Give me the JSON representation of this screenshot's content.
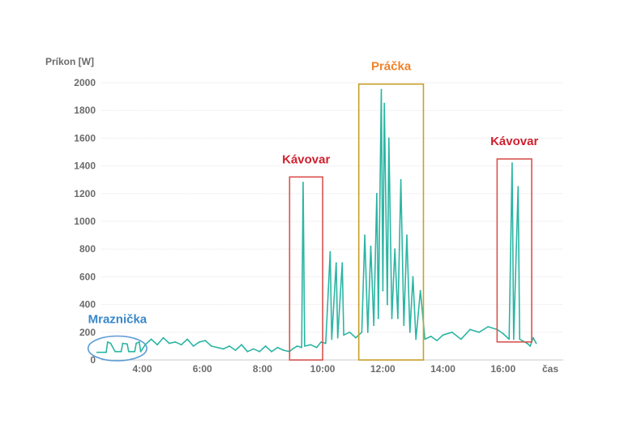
{
  "chart_data": {
    "type": "line",
    "title": "",
    "ylabel": "Príkon [W]",
    "xlabel": "čas",
    "ylim": [
      0,
      2000
    ],
    "xlim": [
      2.1,
      18.0
    ],
    "y_ticks": [
      0,
      200,
      400,
      600,
      800,
      1000,
      1200,
      1400,
      1600,
      1800,
      2000
    ],
    "x_ticks": [
      {
        "value": 4,
        "label": "4:00"
      },
      {
        "value": 6,
        "label": "6:00"
      },
      {
        "value": 8,
        "label": "8:00"
      },
      {
        "value": 10,
        "label": "10:00"
      },
      {
        "value": 12,
        "label": "12:00"
      },
      {
        "value": 14,
        "label": "14:00"
      },
      {
        "value": 16,
        "label": "16:00"
      }
    ],
    "grid": true,
    "series": [
      {
        "name": "Príkon",
        "color": "#2bb5a3",
        "points": [
          [
            2.5,
            55
          ],
          [
            2.8,
            55
          ],
          [
            2.85,
            130
          ],
          [
            2.95,
            120
          ],
          [
            3.1,
            60
          ],
          [
            3.3,
            60
          ],
          [
            3.35,
            120
          ],
          [
            3.5,
            115
          ],
          [
            3.55,
            60
          ],
          [
            3.75,
            60
          ],
          [
            3.8,
            120
          ],
          [
            3.9,
            130
          ],
          [
            3.95,
            60
          ],
          [
            4.1,
            110
          ],
          [
            4.3,
            150
          ],
          [
            4.5,
            110
          ],
          [
            4.7,
            160
          ],
          [
            4.9,
            120
          ],
          [
            5.1,
            130
          ],
          [
            5.3,
            110
          ],
          [
            5.5,
            150
          ],
          [
            5.7,
            100
          ],
          [
            5.9,
            130
          ],
          [
            6.1,
            140
          ],
          [
            6.3,
            100
          ],
          [
            6.5,
            90
          ],
          [
            6.7,
            80
          ],
          [
            6.9,
            100
          ],
          [
            7.1,
            70
          ],
          [
            7.3,
            110
          ],
          [
            7.5,
            60
          ],
          [
            7.7,
            80
          ],
          [
            7.9,
            60
          ],
          [
            8.1,
            100
          ],
          [
            8.3,
            60
          ],
          [
            8.5,
            90
          ],
          [
            8.7,
            70
          ],
          [
            8.9,
            60
          ],
          [
            9.0,
            80
          ],
          [
            9.15,
            100
          ],
          [
            9.3,
            90
          ],
          [
            9.35,
            1280
          ],
          [
            9.4,
            100
          ],
          [
            9.6,
            110
          ],
          [
            9.8,
            90
          ],
          [
            9.95,
            130
          ],
          [
            10.1,
            120
          ],
          [
            10.25,
            780
          ],
          [
            10.3,
            150
          ],
          [
            10.45,
            700
          ],
          [
            10.5,
            160
          ],
          [
            10.65,
            700
          ],
          [
            10.7,
            180
          ],
          [
            10.9,
            200
          ],
          [
            11.1,
            160
          ],
          [
            11.3,
            200
          ],
          [
            11.4,
            900
          ],
          [
            11.5,
            200
          ],
          [
            11.6,
            820
          ],
          [
            11.7,
            250
          ],
          [
            11.8,
            1200
          ],
          [
            11.85,
            300
          ],
          [
            11.95,
            1950
          ],
          [
            12.0,
            500
          ],
          [
            12.05,
            1850
          ],
          [
            12.15,
            400
          ],
          [
            12.2,
            1600
          ],
          [
            12.3,
            300
          ],
          [
            12.4,
            800
          ],
          [
            12.5,
            300
          ],
          [
            12.6,
            1300
          ],
          [
            12.7,
            250
          ],
          [
            12.8,
            900
          ],
          [
            12.9,
            200
          ],
          [
            13.0,
            600
          ],
          [
            13.1,
            150
          ],
          [
            13.25,
            500
          ],
          [
            13.4,
            150
          ],
          [
            13.6,
            170
          ],
          [
            13.8,
            140
          ],
          [
            14.0,
            180
          ],
          [
            14.3,
            200
          ],
          [
            14.6,
            150
          ],
          [
            14.9,
            220
          ],
          [
            15.2,
            200
          ],
          [
            15.5,
            240
          ],
          [
            15.8,
            220
          ],
          [
            16.0,
            190
          ],
          [
            16.2,
            150
          ],
          [
            16.3,
            1420
          ],
          [
            16.35,
            150
          ],
          [
            16.5,
            1250
          ],
          [
            16.55,
            150
          ],
          [
            16.8,
            120
          ],
          [
            16.9,
            100
          ],
          [
            17.0,
            160
          ],
          [
            17.1,
            120
          ]
        ]
      }
    ],
    "annotations": [
      {
        "label": "Mraznička",
        "shape": "ellipse",
        "color": "#5b9bd5",
        "text_color": "#3a88c9",
        "x_range": [
          2.2,
          4.15
        ],
        "y_range": [
          0,
          190
        ]
      },
      {
        "label": "Kávovar",
        "shape": "rect",
        "color": "#d9534f",
        "text_color": "#d0202f",
        "x_range": [
          8.9,
          10.0
        ],
        "y_range": [
          0,
          1320
        ]
      },
      {
        "label": "Práčka",
        "shape": "rect",
        "color": "#c8a02a",
        "text_color": "#f0822a",
        "x_range": [
          11.2,
          13.35
        ],
        "y_range": [
          0,
          1990
        ]
      },
      {
        "label": "Kávovar",
        "shape": "rect",
        "color": "#d9534f",
        "text_color": "#d0202f",
        "x_range": [
          15.8,
          16.95
        ],
        "y_range": [
          130,
          1450
        ]
      }
    ]
  }
}
